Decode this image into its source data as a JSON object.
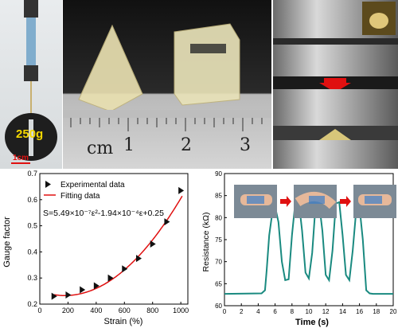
{
  "photo_a": {
    "weight_label": "250g",
    "scale_label": "1cm"
  },
  "photo_b": {
    "ruler_unit": "cm",
    "ruler_numbers": [
      "1",
      "2",
      "3"
    ]
  },
  "photo_c": {},
  "chart_data": [
    {
      "type": "scatter",
      "xlabel": "Strain (%)",
      "ylabel": "Gauge factor",
      "xlim": [
        0,
        1050
      ],
      "ylim": [
        0.2,
        0.7
      ],
      "xticks": [
        "0",
        "200",
        "400",
        "600",
        "800",
        "1000"
      ],
      "yticks": [
        "0.2",
        "0.3",
        "0.4",
        "0.5",
        "0.6",
        "0.7"
      ],
      "legend": [
        "Experimental data",
        "Fitting data"
      ],
      "legend_position": "top-left",
      "equation": "S=5.49×10⁻⁷ε²-1.94×10⁻⁴ε+0.25",
      "series": [
        {
          "name": "Experimental data",
          "x": [
            100,
            200,
            300,
            400,
            500,
            600,
            700,
            800,
            900,
            1000
          ],
          "y": [
            0.23,
            0.235,
            0.255,
            0.27,
            0.3,
            0.335,
            0.375,
            0.43,
            0.515,
            0.635
          ]
        },
        {
          "name": "Fitting data",
          "type": "line",
          "coefficients": [
            5.49e-07,
            -0.000194,
            0.25
          ],
          "x_range": [
            100,
            1010
          ]
        }
      ]
    },
    {
      "type": "line",
      "xlabel": "Time (s)",
      "ylabel": "Resistance (kΩ)",
      "xlim": [
        0,
        20
      ],
      "ylim": [
        60,
        90
      ],
      "xticks": [
        "0",
        "2",
        "4",
        "6",
        "8",
        "10",
        "12",
        "14",
        "16",
        "18",
        "20"
      ],
      "yticks": [
        "60",
        "65",
        "70",
        "75",
        "80",
        "85",
        "90"
      ],
      "series": [
        {
          "x": [
            0,
            4.4,
            4.8,
            5.0,
            5.3,
            5.7,
            6.0,
            6.4,
            6.8,
            7.2,
            7.6,
            8.0,
            8.4,
            8.8,
            9.2,
            9.6,
            10.0,
            10.4,
            10.8,
            11.2,
            11.6,
            12.0,
            12.4,
            12.8,
            13.2,
            13.6,
            14.0,
            14.4,
            14.8,
            15.2,
            15.6,
            16.0,
            16.4,
            16.8,
            17.2,
            17.6,
            20
          ],
          "y": [
            62.7,
            62.8,
            63.5,
            68,
            76,
            81.5,
            82.5,
            79,
            70,
            65.8,
            66,
            76,
            83.5,
            83.8,
            77,
            67.5,
            66.2,
            72,
            83,
            83.5,
            77,
            67,
            65.8,
            72.5,
            83.2,
            83.5,
            76,
            67,
            65.8,
            72.5,
            81.5,
            82.5,
            75,
            63.5,
            62.8,
            62.7,
            62.7
          ]
        }
      ]
    }
  ]
}
